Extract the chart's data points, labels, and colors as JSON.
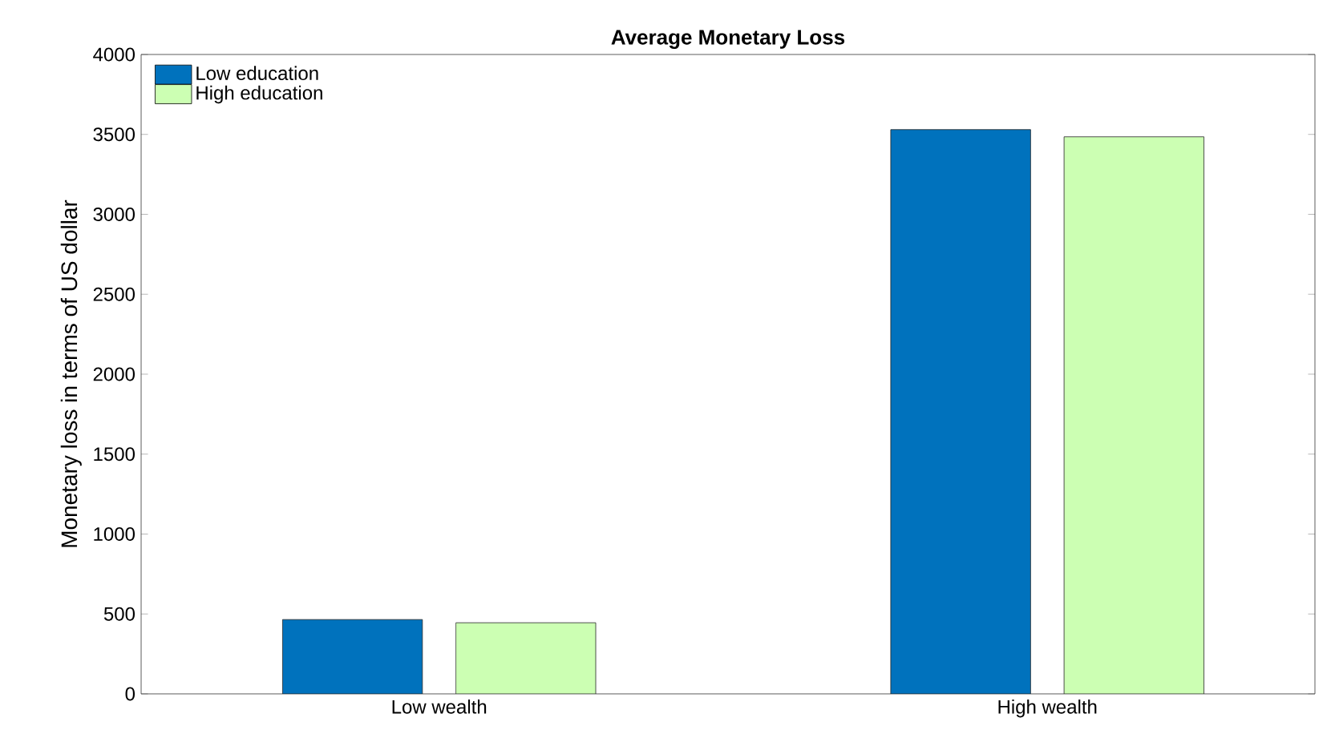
{
  "chart_data": {
    "type": "bar",
    "title": "Average Monetary Loss",
    "ylabel": "Monetary loss in terms of US dollar",
    "categories": [
      "Low wealth",
      "High wealth"
    ],
    "series": [
      {
        "name": "Low education",
        "color": "#0072bd",
        "values": [
          465,
          3530
        ]
      },
      {
        "name": "High education",
        "color": "#ccffb3",
        "values": [
          445,
          3485
        ]
      }
    ],
    "ylim": [
      0,
      4000
    ],
    "yticks": [
      0,
      500,
      1000,
      1500,
      2000,
      2500,
      3000,
      3500,
      4000
    ],
    "legend": "top left"
  }
}
